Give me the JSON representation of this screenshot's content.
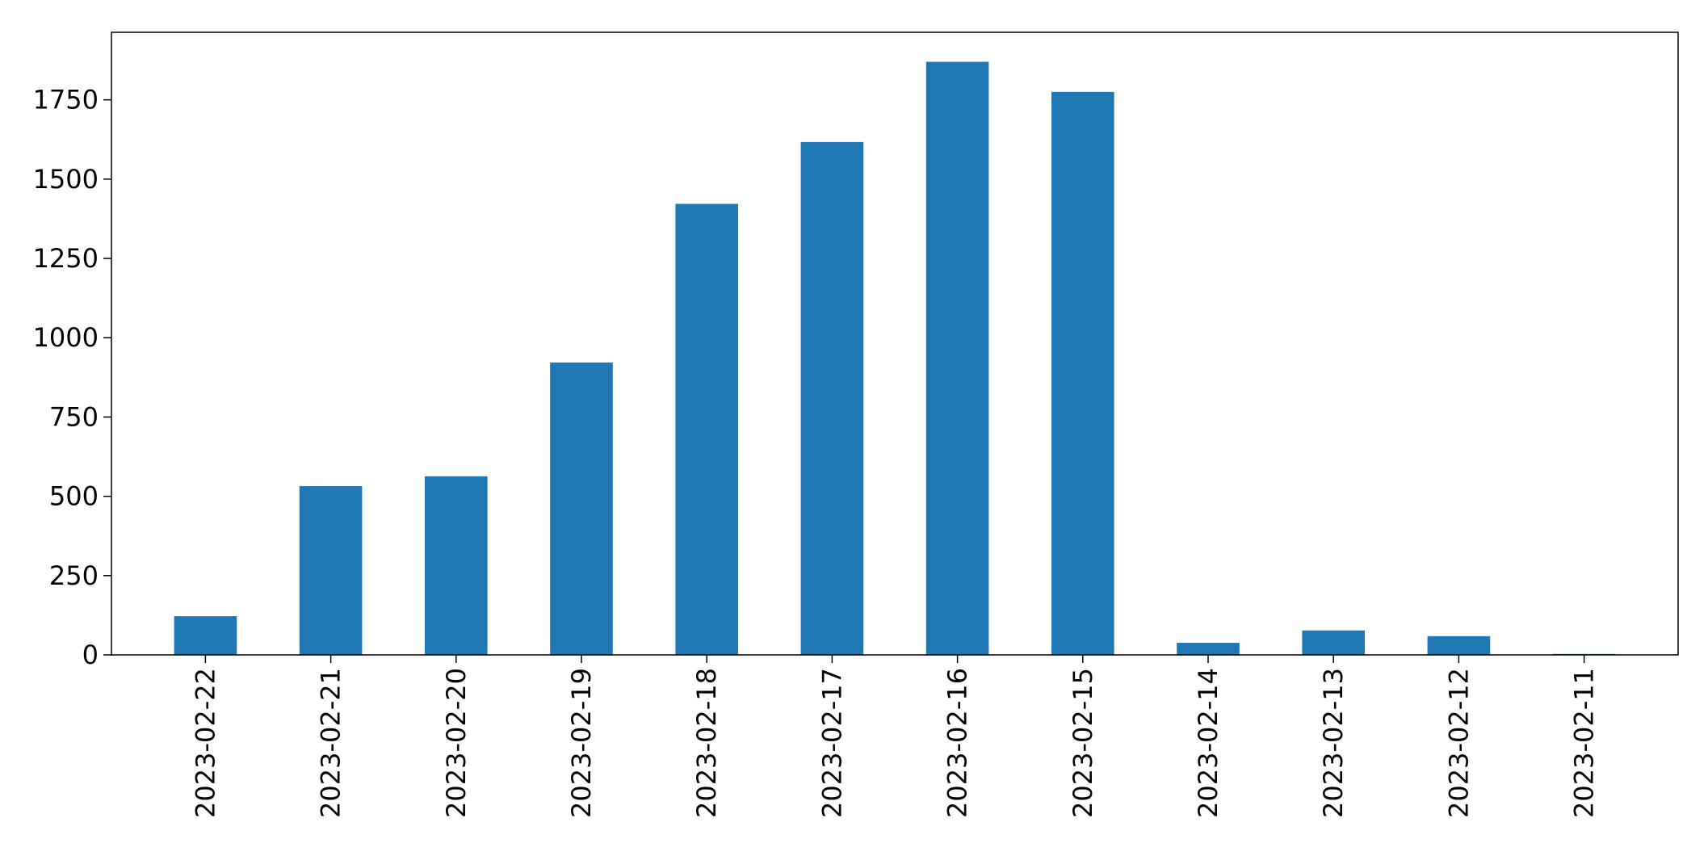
{
  "chart_data": {
    "type": "bar",
    "categories": [
      "2023-02-22",
      "2023-02-21",
      "2023-02-20",
      "2023-02-19",
      "2023-02-18",
      "2023-02-17",
      "2023-02-16",
      "2023-02-15",
      "2023-02-14",
      "2023-02-13",
      "2023-02-12",
      "2023-02-11"
    ],
    "values": [
      122,
      532,
      563,
      922,
      1422,
      1617,
      1870,
      1775,
      38,
      77,
      59,
      3
    ],
    "title": "",
    "xlabel": "",
    "ylabel": "",
    "ylim": [
      0,
      1963
    ],
    "yticks": [
      0,
      250,
      500,
      750,
      1000,
      1250,
      1500,
      1750
    ],
    "ytick_labels": [
      "0",
      "250",
      "500",
      "750",
      "1000",
      "1250",
      "1500",
      "1750"
    ],
    "grid": false,
    "legend": "none",
    "bar_color": "#1f77b4"
  }
}
